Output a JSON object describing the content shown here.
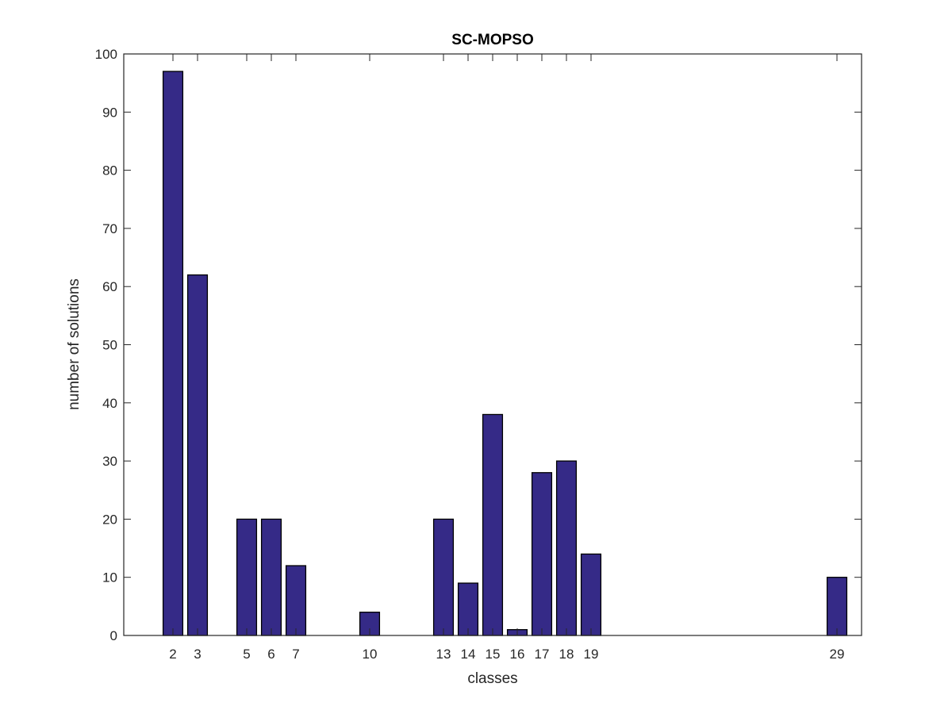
{
  "chart_data": {
    "type": "bar",
    "title": "SC-MOPSO",
    "xlabel": "classes",
    "ylabel": "number of solutions",
    "x": [
      2,
      3,
      5,
      6,
      7,
      10,
      13,
      14,
      15,
      16,
      17,
      18,
      19,
      29
    ],
    "values": [
      97,
      62,
      20,
      20,
      12,
      4,
      20,
      9,
      38,
      1,
      28,
      30,
      14,
      10
    ],
    "xlim": [
      0,
      30
    ],
    "ylim": [
      0,
      100
    ],
    "xticks": [
      "2",
      "3",
      "5",
      "6",
      "7",
      "10",
      "13",
      "14",
      "15",
      "16",
      "17",
      "18",
      "19",
      "29"
    ],
    "yticks": [
      "0",
      "10",
      "20",
      "30",
      "40",
      "50",
      "60",
      "70",
      "80",
      "90",
      "100"
    ],
    "grid": false,
    "legend": "none",
    "bar_color": "#352a87",
    "edge_color": "#000000"
  }
}
